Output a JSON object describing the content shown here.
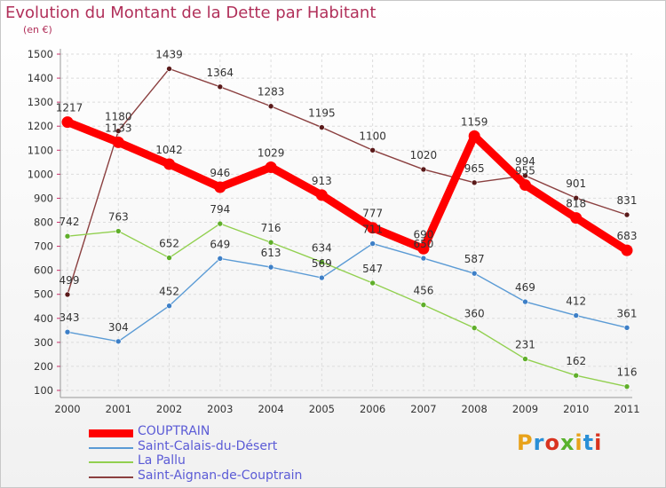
{
  "header": {
    "title": "Evolution du Montant de la Dette par Habitant",
    "subtitle": "(en €)"
  },
  "logo": {
    "text": "Proxiti",
    "colors": [
      "#e8a21a",
      "#2a8fd6",
      "#d9331f",
      "#59b22c",
      "#e8a21a",
      "#2a8fd6",
      "#d9331f"
    ]
  },
  "chart_data": {
    "type": "line",
    "title": "Evolution du Montant de la Dette par Habitant",
    "ylabel": "(en €)",
    "x": [
      "2000",
      "2001",
      "2002",
      "2003",
      "2004",
      "2005",
      "2006",
      "2007",
      "2008",
      "2009",
      "2010",
      "2011"
    ],
    "yticks": [
      100,
      200,
      300,
      400,
      500,
      600,
      700,
      800,
      900,
      1000,
      1100,
      1200,
      1300,
      1400,
      1500
    ],
    "ylim": [
      100,
      1500
    ],
    "grid": true,
    "legend_position": "bottom-left",
    "series": [
      {
        "name": "COUPTRAIN",
        "color": "#ff0000",
        "values": [
          1217,
          1133,
          1042,
          946,
          1029,
          913,
          777,
          690,
          1159,
          955,
          818,
          683
        ]
      },
      {
        "name": "Saint-Calais-du-Désert",
        "color": "#5b9bd5",
        "values": [
          343,
          304,
          452,
          649,
          613,
          569,
          711,
          650,
          587,
          469,
          412,
          361
        ]
      },
      {
        "name": "La Pallu",
        "color": "#92d050",
        "values": [
          742,
          763,
          652,
          794,
          716,
          634,
          547,
          456,
          360,
          231,
          162,
          116
        ]
      },
      {
        "name": "Saint-Aignan-de-Couptrain",
        "color": "#8b4040",
        "values": [
          499,
          1180,
          1439,
          1364,
          1283,
          1195,
          1100,
          1020,
          965,
          994,
          901,
          831
        ]
      }
    ]
  }
}
